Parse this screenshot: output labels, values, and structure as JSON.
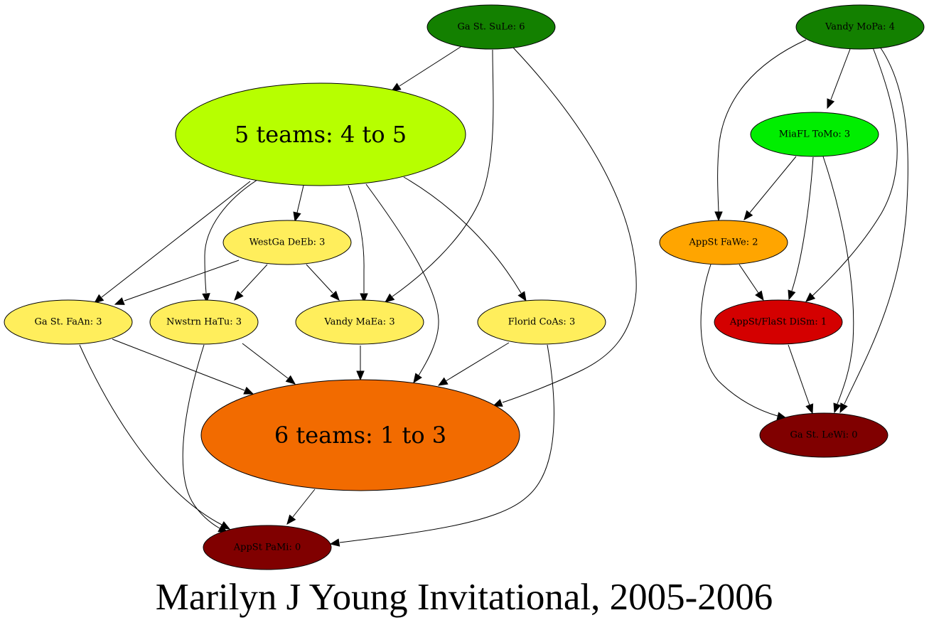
{
  "title": "Marilyn J Young Invitational, 2005-2006",
  "nodes": [
    {
      "id": "gsu_sule",
      "label": "Ga St. SuLe: 6",
      "color": "#138000",
      "size": "small"
    },
    {
      "id": "five",
      "label": "5 teams: 4 to 5",
      "color": "#b7ff00",
      "size": "big"
    },
    {
      "id": "westga",
      "label": "WestGa DeEb: 3",
      "color": "#ffee5c",
      "size": "small"
    },
    {
      "id": "gsu_faan",
      "label": "Ga St. FaAn: 3",
      "color": "#ffee5c",
      "size": "small"
    },
    {
      "id": "nwstrn",
      "label": "Nwstrn HaTu: 3",
      "color": "#ffee5c",
      "size": "small"
    },
    {
      "id": "vandy_maea",
      "label": "Vandy MaEa: 3",
      "color": "#ffee5c",
      "size": "small"
    },
    {
      "id": "florid",
      "label": "Florid CoAs: 3",
      "color": "#ffee5c",
      "size": "small"
    },
    {
      "id": "six",
      "label": "6 teams: 1 to 3",
      "color": "#f26b00",
      "size": "big"
    },
    {
      "id": "appst_pami",
      "label": "AppSt PaMi: 0",
      "color": "#800000",
      "size": "small"
    },
    {
      "id": "vandy_mopa",
      "label": "Vandy MoPa: 4",
      "color": "#138000",
      "size": "small"
    },
    {
      "id": "miafl",
      "label": "MiaFL ToMo: 3",
      "color": "#00ee00",
      "size": "small"
    },
    {
      "id": "appst_fawe",
      "label": "AppSt FaWe: 2",
      "color": "#ffa500",
      "size": "small"
    },
    {
      "id": "appst_dism",
      "label": "AppSt/FlaSt DiSm: 1",
      "color": "#d40000",
      "size": "small"
    },
    {
      "id": "gsu_lewi",
      "label": "Ga St. LeWi: 0",
      "color": "#800000",
      "size": "small"
    }
  ],
  "edges": [
    {
      "from": "gsu_sule",
      "to": "five"
    },
    {
      "from": "gsu_sule",
      "to": "vandy_maea"
    },
    {
      "from": "gsu_sule",
      "to": "six"
    },
    {
      "from": "five",
      "to": "westga"
    },
    {
      "from": "five",
      "to": "gsu_faan"
    },
    {
      "from": "five",
      "to": "nwstrn"
    },
    {
      "from": "five",
      "to": "vandy_maea"
    },
    {
      "from": "five",
      "to": "florid"
    },
    {
      "from": "five",
      "to": "six"
    },
    {
      "from": "westga",
      "to": "gsu_faan"
    },
    {
      "from": "westga",
      "to": "nwstrn"
    },
    {
      "from": "westga",
      "to": "vandy_maea"
    },
    {
      "from": "gsu_faan",
      "to": "six"
    },
    {
      "from": "gsu_faan",
      "to": "appst_pami"
    },
    {
      "from": "nwstrn",
      "to": "six"
    },
    {
      "from": "nwstrn",
      "to": "appst_pami"
    },
    {
      "from": "vandy_maea",
      "to": "six"
    },
    {
      "from": "florid",
      "to": "six"
    },
    {
      "from": "florid",
      "to": "appst_pami"
    },
    {
      "from": "six",
      "to": "appst_pami"
    },
    {
      "from": "vandy_mopa",
      "to": "miafl"
    },
    {
      "from": "vandy_mopa",
      "to": "appst_fawe"
    },
    {
      "from": "vandy_mopa",
      "to": "appst_dism"
    },
    {
      "from": "vandy_mopa",
      "to": "gsu_lewi"
    },
    {
      "from": "miafl",
      "to": "appst_fawe"
    },
    {
      "from": "miafl",
      "to": "appst_dism"
    },
    {
      "from": "miafl",
      "to": "gsu_lewi"
    },
    {
      "from": "appst_fawe",
      "to": "appst_dism"
    },
    {
      "from": "appst_fawe",
      "to": "gsu_lewi"
    },
    {
      "from": "appst_dism",
      "to": "gsu_lewi"
    }
  ]
}
